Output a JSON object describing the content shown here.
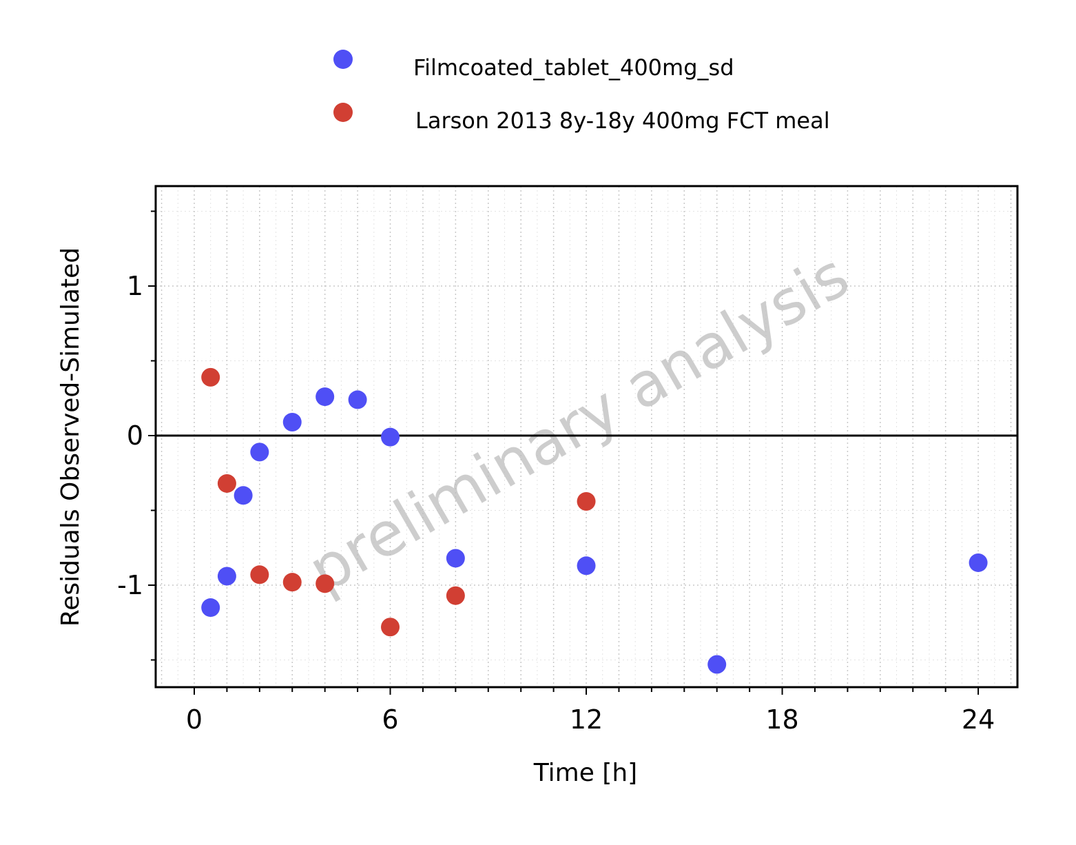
{
  "chart_data": {
    "type": "scatter",
    "title": "",
    "xlabel": "Time [h]",
    "ylabel": "Residuals Observed-Simulated",
    "xlim": [
      -1.2,
      25.2
    ],
    "ylim": [
      -1.67,
      1.68
    ],
    "xticks": [
      0,
      6,
      12,
      18,
      24
    ],
    "yticks": [
      -1,
      0,
      1
    ],
    "grid": true,
    "legend_position": "top",
    "reference_line_y": 0,
    "watermark": "preliminary analysis",
    "series": [
      {
        "name": "Filmcoated_tablet_400mg_sd",
        "color": "#4f4ff5",
        "points": [
          {
            "x": 0.5,
            "y": -1.15
          },
          {
            "x": 1.0,
            "y": -0.94
          },
          {
            "x": 1.5,
            "y": -0.4
          },
          {
            "x": 2.0,
            "y": -0.11
          },
          {
            "x": 3.0,
            "y": 0.09
          },
          {
            "x": 4.0,
            "y": 0.26
          },
          {
            "x": 5.0,
            "y": 0.24
          },
          {
            "x": 6.0,
            "y": -0.01
          },
          {
            "x": 8.0,
            "y": -0.82
          },
          {
            "x": 12.0,
            "y": -0.87
          },
          {
            "x": 16.0,
            "y": -1.53
          },
          {
            "x": 24.0,
            "y": -0.85
          }
        ]
      },
      {
        "name": "Larson 2013 8y-18y 400mg FCT meal",
        "color": "#d13f33",
        "points": [
          {
            "x": 0.5,
            "y": 0.39
          },
          {
            "x": 1.0,
            "y": -0.32
          },
          {
            "x": 2.0,
            "y": -0.93
          },
          {
            "x": 3.0,
            "y": -0.98
          },
          {
            "x": 4.0,
            "y": -0.99
          },
          {
            "x": 6.0,
            "y": -1.28
          },
          {
            "x": 8.0,
            "y": -1.07
          },
          {
            "x": 12.0,
            "y": -0.44
          }
        ]
      }
    ]
  }
}
